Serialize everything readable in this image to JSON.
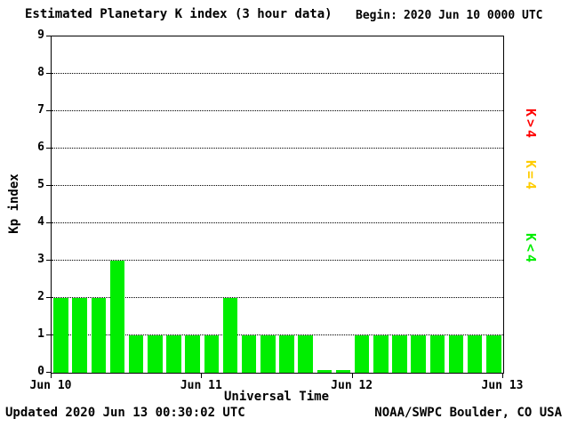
{
  "header": {
    "title": "Estimated Planetary K index (3 hour data)",
    "begin_label": "Begin:",
    "begin_value": "2020 Jun 10 0000 UTC"
  },
  "footer": {
    "updated": "Updated 2020 Jun 13 00:30:02 UTC",
    "credit": "NOAA/SWPC Boulder, CO USA"
  },
  "chart_data": {
    "type": "bar",
    "title": "Estimated Planetary K index (3 hour data)",
    "xlabel": "Universal Time",
    "ylabel": "Kp index",
    "ylim": [
      0,
      9
    ],
    "yticks": [
      0,
      1,
      2,
      3,
      4,
      5,
      6,
      7,
      8,
      9
    ],
    "xticks": [
      "Jun 10",
      "Jun 11",
      "Jun 12",
      "Jun 13"
    ],
    "grid": "dotted-horizontal",
    "bar_color": "#00ee00",
    "values": [
      2,
      2,
      2,
      3,
      1,
      1,
      1,
      1,
      1,
      2,
      1,
      1,
      1,
      1,
      0,
      0,
      1,
      1,
      1,
      1,
      1,
      1,
      1,
      1
    ],
    "legend": [
      {
        "label": "K<4",
        "color": "#00ee00"
      },
      {
        "label": "K=4",
        "color": "#ffcc00"
      },
      {
        "label": "K>4",
        "color": "#ff0000"
      }
    ],
    "legend_position": "right-rotated"
  }
}
